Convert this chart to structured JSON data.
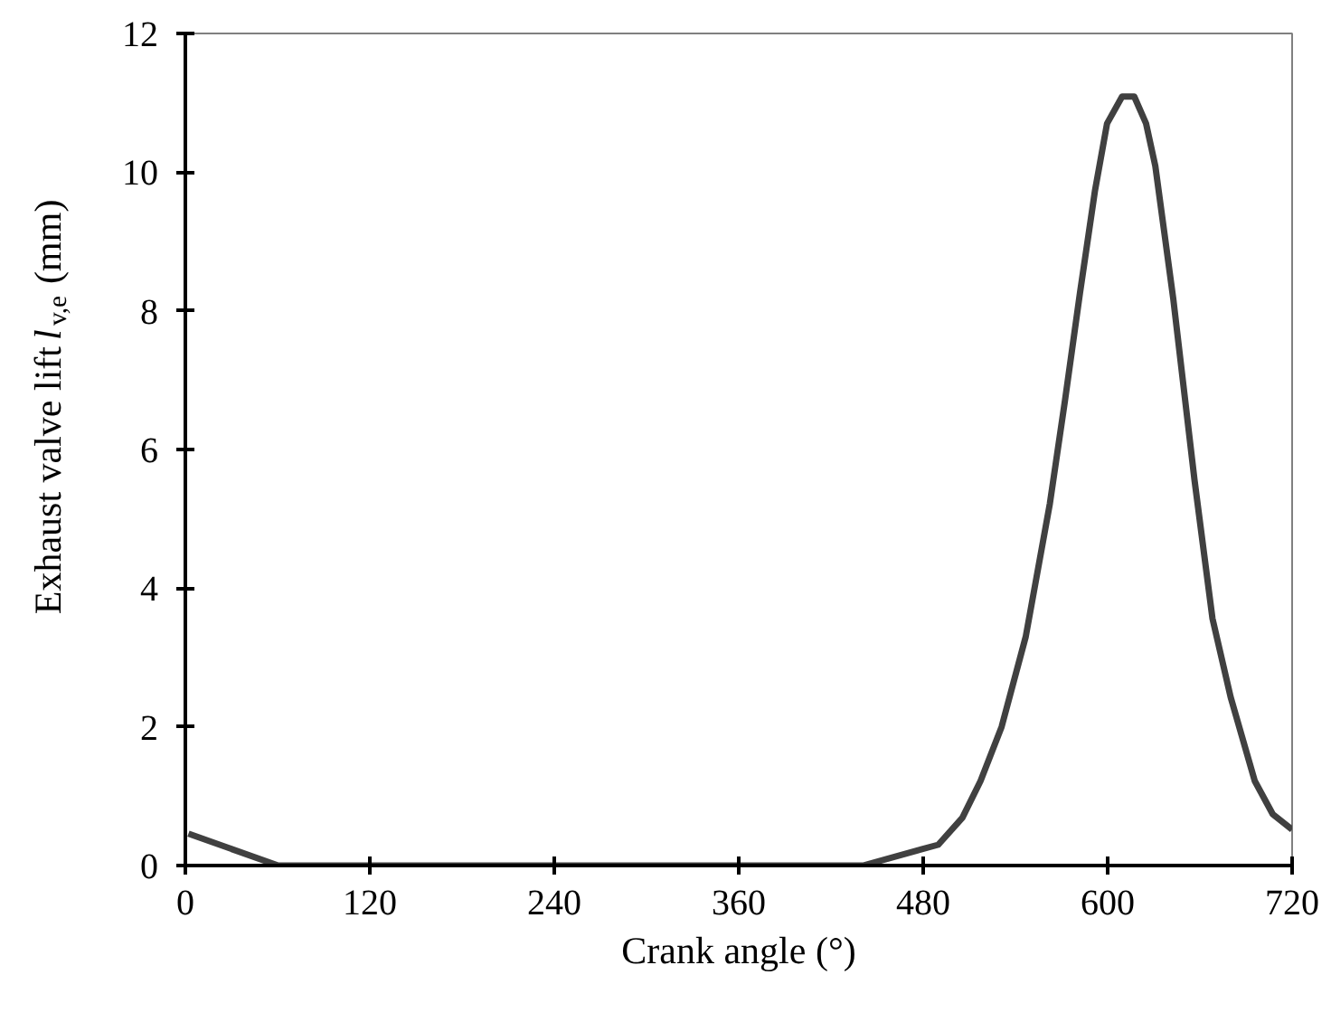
{
  "chart_data": {
    "type": "line",
    "xlabel": "Crank angle (°)",
    "ylabel": "Exhaust valve lift l$_{v,e}$ (mm)",
    "x": [
      2,
      60.4,
      440.8,
      489.8,
      505.5,
      517.3,
      531,
      546.7,
      562.4,
      572.2,
      582,
      591.8,
      599.6,
      609.4,
      617.3,
      625,
      631,
      642.7,
      656.5,
      668.2,
      680,
      695.7,
      707.4,
      720
    ],
    "series": [
      {
        "color": "#404040",
        "values": [
          0.46,
          0,
          0,
          0.3,
          0.69,
          1.22,
          2.0,
          3.3,
          5.22,
          6.7,
          8.26,
          9.74,
          10.7,
          11.09,
          11.09,
          10.7,
          10.09,
          8.17,
          5.56,
          3.56,
          2.43,
          1.22,
          0.74,
          0.52
        ]
      }
    ],
    "xlim": [
      0,
      720
    ],
    "xticks": [
      0,
      120,
      240,
      360,
      480,
      600,
      720
    ],
    "ylim": [
      0,
      12
    ],
    "yticks": [
      0,
      2,
      4,
      6,
      8,
      10,
      12
    ],
    "grid": false,
    "marker": "none",
    "line_style": "solid"
  }
}
